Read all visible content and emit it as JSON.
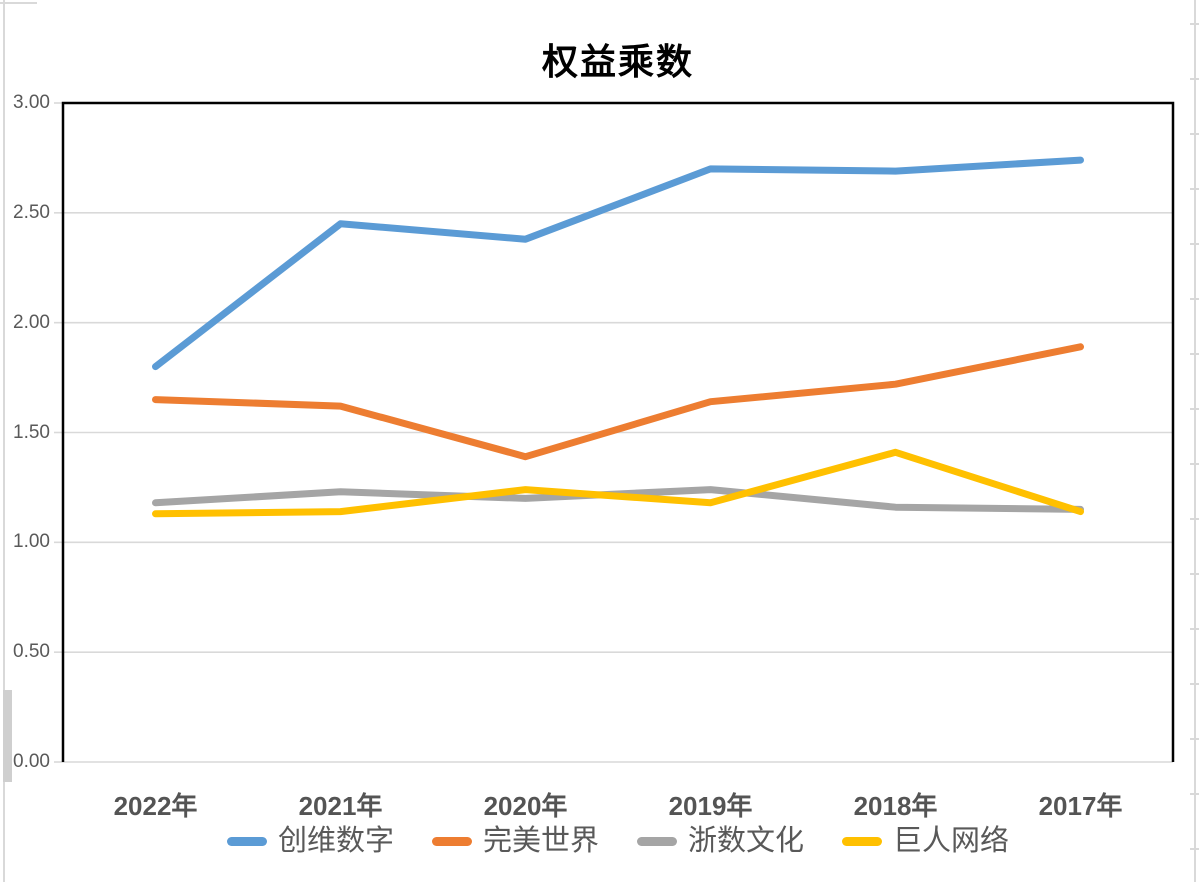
{
  "chart_data": {
    "type": "line",
    "title": "权益乘数",
    "categories": [
      "2022年",
      "2021年",
      "2020年",
      "2019年",
      "2018年",
      "2017年"
    ],
    "series": [
      {
        "name": "创维数字",
        "color": "#5B9BD5",
        "values": [
          1.8,
          2.45,
          2.38,
          2.7,
          2.69,
          2.74
        ]
      },
      {
        "name": "完美世界",
        "color": "#ED7D31",
        "values": [
          1.65,
          1.62,
          1.39,
          1.64,
          1.72,
          1.89
        ]
      },
      {
        "name": "浙数文化",
        "color": "#A5A5A5",
        "values": [
          1.18,
          1.23,
          1.2,
          1.24,
          1.16,
          1.15
        ]
      },
      {
        "name": "巨人网络",
        "color": "#FFC000",
        "values": [
          1.13,
          1.14,
          1.24,
          1.18,
          1.41,
          1.14
        ]
      }
    ],
    "ylim": [
      0,
      3
    ],
    "ytick_step": 0.5,
    "ytick_labels": [
      "3.00",
      "2.50",
      "2.00",
      "1.50",
      "1.00",
      "0.50",
      "0.00"
    ],
    "grid": true,
    "legend_position": "bottom",
    "styles": {
      "gridline_color": "#D9D9D9",
      "axis_border_color": "#000000",
      "label_color": "#595959",
      "background": "#FFFFFF"
    }
  }
}
